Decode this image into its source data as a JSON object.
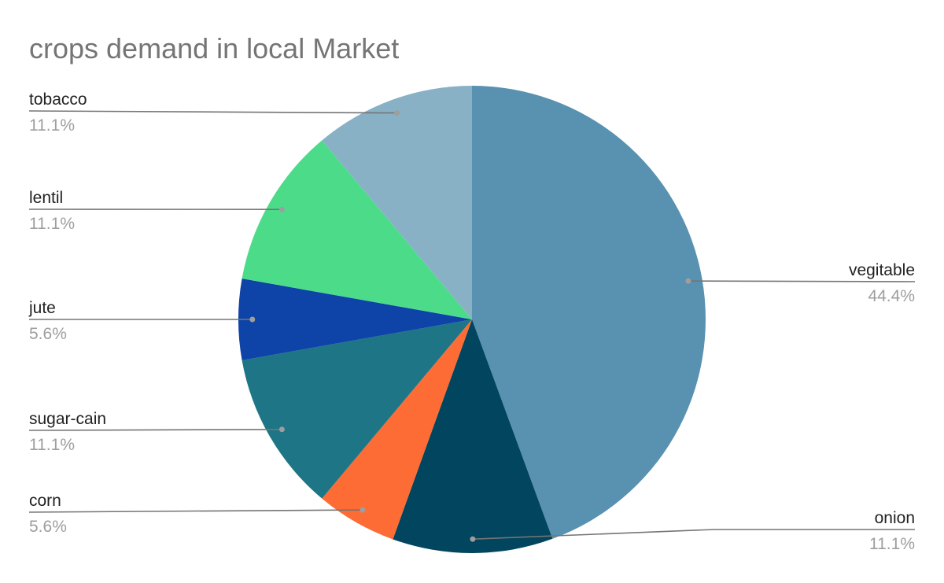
{
  "chart_data": {
    "type": "pie",
    "title": "crops demand in local Market",
    "slices": [
      {
        "name": "vegitable",
        "value": 44.4,
        "label": "44.4%",
        "color": "#5991b0"
      },
      {
        "name": "onion",
        "value": 11.1,
        "label": "11.1%",
        "color": "#01455f"
      },
      {
        "name": "corn",
        "value": 5.6,
        "label": "5.6%",
        "color": "#fc6c34"
      },
      {
        "name": "sugar-cain",
        "value": 11.1,
        "label": "11.1%",
        "color": "#1d7585"
      },
      {
        "name": "jute",
        "value": 5.6,
        "label": "5.6%",
        "color": "#0e43a8"
      },
      {
        "name": "lentil",
        "value": 11.1,
        "label": "11.1%",
        "color": "#4cdc89"
      },
      {
        "name": "tobacco",
        "value": 11.1,
        "label": "11.1%",
        "color": "#88b1c6"
      }
    ],
    "start_angle": "12 o'clock",
    "direction": "clockwise",
    "legend": "none"
  }
}
